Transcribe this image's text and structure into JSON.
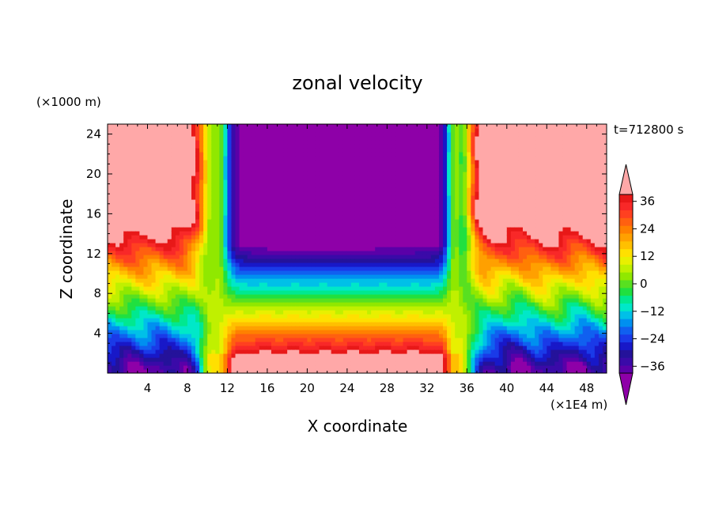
{
  "chart_data": {
    "type": "heatmap",
    "title": "zonal velocity",
    "xlabel": "X coordinate",
    "ylabel": "Z coordinate",
    "x_unit": "(×1E4 m)",
    "y_unit": "(×1000 m)",
    "time_label": "t=712800 s",
    "xlim": [
      0,
      50
    ],
    "ylim": [
      0,
      25
    ],
    "x_ticks": [
      4,
      8,
      12,
      16,
      20,
      24,
      28,
      32,
      36,
      40,
      44,
      48
    ],
    "y_ticks": [
      4,
      8,
      12,
      16,
      20,
      24
    ],
    "grid": false,
    "colorbar": {
      "levels": [
        -42,
        -39,
        -36,
        -33,
        -30,
        -27,
        -24,
        -21,
        -18,
        -15,
        -12,
        -9,
        -6,
        -3,
        0,
        3,
        6,
        9,
        12,
        15,
        18,
        21,
        24,
        27,
        30,
        33,
        36,
        39,
        42
      ],
      "tick_labels": [
        "36",
        "24",
        "12",
        "0",
        "-12",
        "-24",
        "-36"
      ],
      "tick_values": [
        36,
        24,
        12,
        0,
        -12,
        -24,
        -36
      ],
      "extend": "both",
      "colors": [
        "#8e00a8",
        "#5a00a8",
        "#3a0aa8",
        "#24129a",
        "#1818c8",
        "#1a3ae8",
        "#1060f0",
        "#0090f0",
        "#00c0e8",
        "#00e8c8",
        "#00e890",
        "#20e040",
        "#58e020",
        "#90e800",
        "#c0f000",
        "#e8f000",
        "#ffe000",
        "#ffc000",
        "#ffa000",
        "#ff8000",
        "#ff6010",
        "#ff4020",
        "#f82828",
        "#e81818",
        "#ffa8a8"
      ]
    },
    "regions": {
      "westerly_west_max_x": 9.5,
      "easterly_center_range": [
        12,
        34
      ],
      "westerly_east_min_x": 37,
      "surface_reversal_height": 5.5
    }
  }
}
